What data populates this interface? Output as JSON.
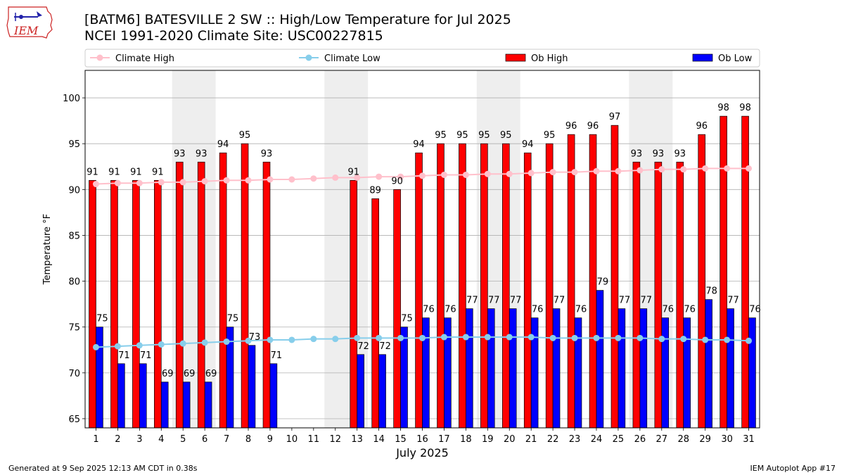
{
  "logo_text": "IEM",
  "title_line1": "[BATM6] BATESVILLE 2 SW :: High/Low Temperature for Jul 2025",
  "title_line2": "NCEI 1991-2020 Climate Site: USC00227815",
  "footer_left": "Generated at 9 Sep 2025 12:13 AM CDT in 0.38s",
  "footer_right": "IEM Autoplot App #17",
  "colors": {
    "ob_high": "#ff0000",
    "ob_low": "#0000ff",
    "climate_high": "#ffc0cb",
    "climate_low": "#87ceeb",
    "weekend_shade": "#eeeeee",
    "grid": "#b0b0b0"
  },
  "chart_data": {
    "type": "bar",
    "xlabel": "July 2025",
    "ylabel": "Temperature °F",
    "ylim": [
      64,
      103
    ],
    "yticks": [
      65,
      70,
      75,
      80,
      85,
      90,
      95,
      100
    ],
    "grid": "horizontal",
    "legend_placement": "top",
    "categories": [
      "1",
      "2",
      "3",
      "4",
      "5",
      "6",
      "7",
      "8",
      "9",
      "10",
      "11",
      "12",
      "13",
      "14",
      "15",
      "16",
      "17",
      "18",
      "19",
      "20",
      "21",
      "22",
      "23",
      "24",
      "25",
      "26",
      "27",
      "28",
      "29",
      "30",
      "31"
    ],
    "shaded_periods": [
      [
        5,
        6
      ],
      [
        12,
        13
      ],
      [
        19,
        20
      ],
      [
        26,
        27
      ]
    ],
    "series": [
      {
        "name": "Climate High",
        "kind": "line",
        "values": [
          90.6,
          90.7,
          90.7,
          90.8,
          90.8,
          90.9,
          91.0,
          91.0,
          91.1,
          91.1,
          91.2,
          91.3,
          91.3,
          91.4,
          91.4,
          91.5,
          91.6,
          91.6,
          91.7,
          91.7,
          91.8,
          91.9,
          91.9,
          92.0,
          92.0,
          92.1,
          92.2,
          92.2,
          92.3,
          92.3,
          92.3
        ]
      },
      {
        "name": "Climate Low",
        "kind": "line",
        "values": [
          72.8,
          72.9,
          73.0,
          73.1,
          73.2,
          73.3,
          73.4,
          73.5,
          73.6,
          73.6,
          73.7,
          73.7,
          73.8,
          73.8,
          73.8,
          73.8,
          73.9,
          73.9,
          73.9,
          73.9,
          73.9,
          73.8,
          73.8,
          73.8,
          73.8,
          73.8,
          73.7,
          73.7,
          73.6,
          73.6,
          73.5
        ]
      },
      {
        "name": "Ob High",
        "kind": "bar",
        "values": [
          91,
          91,
          91,
          91,
          93,
          93,
          94,
          95,
          93,
          null,
          null,
          null,
          91,
          89,
          90,
          94,
          95,
          95,
          95,
          95,
          94,
          95,
          96,
          96,
          97,
          93,
          93,
          93,
          96,
          98,
          98
        ]
      },
      {
        "name": "Ob Low",
        "kind": "bar",
        "values": [
          75,
          71,
          71,
          69,
          69,
          69,
          75,
          73,
          71,
          null,
          null,
          null,
          72,
          72,
          75,
          76,
          76,
          77,
          77,
          77,
          76,
          77,
          76,
          79,
          77,
          77,
          76,
          76,
          78,
          77,
          76
        ]
      }
    ]
  }
}
